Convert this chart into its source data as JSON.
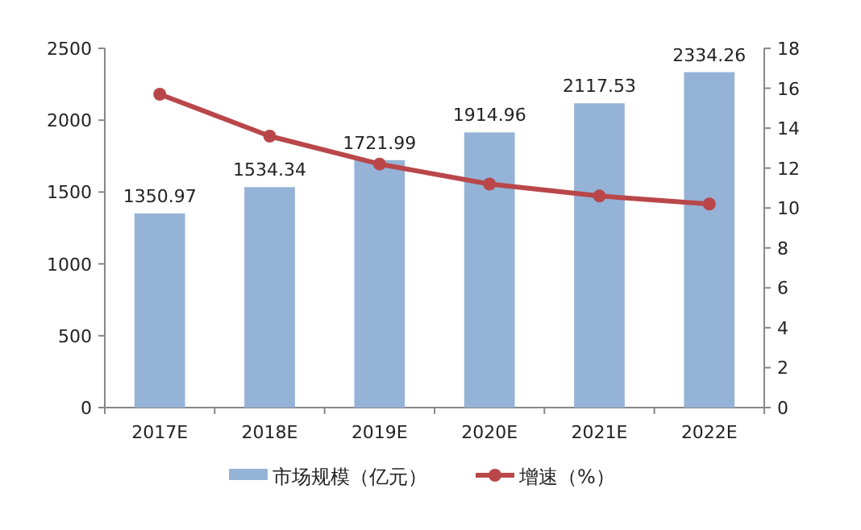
{
  "chart_data": {
    "type": "bar",
    "categories": [
      "2017E",
      "2018E",
      "2019E",
      "2020E",
      "2021E",
      "2022E"
    ],
    "series": [
      {
        "name": "市场规模（亿元）",
        "color": "#95b3d7",
        "values": [
          1350.97,
          1534.34,
          1721.99,
          1914.96,
          2117.53,
          2334.26
        ],
        "value_labels": [
          "1350.97",
          "1534.34",
          "1721.99",
          "1914.96",
          "2117.53",
          "2334.26"
        ]
      },
      {
        "name": "增速（%）",
        "type": "line",
        "axis": "y2",
        "color": "#b9474a",
        "values": [
          15.7,
          13.6,
          12.2,
          11.2,
          10.6,
          10.2
        ]
      }
    ],
    "ylim": [
      0,
      2500
    ],
    "yticks": [
      0,
      500,
      1000,
      1500,
      2000,
      2500
    ],
    "y2lim": [
      0,
      18
    ],
    "y2ticks": [
      0,
      2,
      4,
      6,
      8,
      10,
      12,
      14,
      16,
      18
    ],
    "grid": false,
    "legend": "bottom",
    "marker": "circle",
    "line_style": "solid"
  }
}
